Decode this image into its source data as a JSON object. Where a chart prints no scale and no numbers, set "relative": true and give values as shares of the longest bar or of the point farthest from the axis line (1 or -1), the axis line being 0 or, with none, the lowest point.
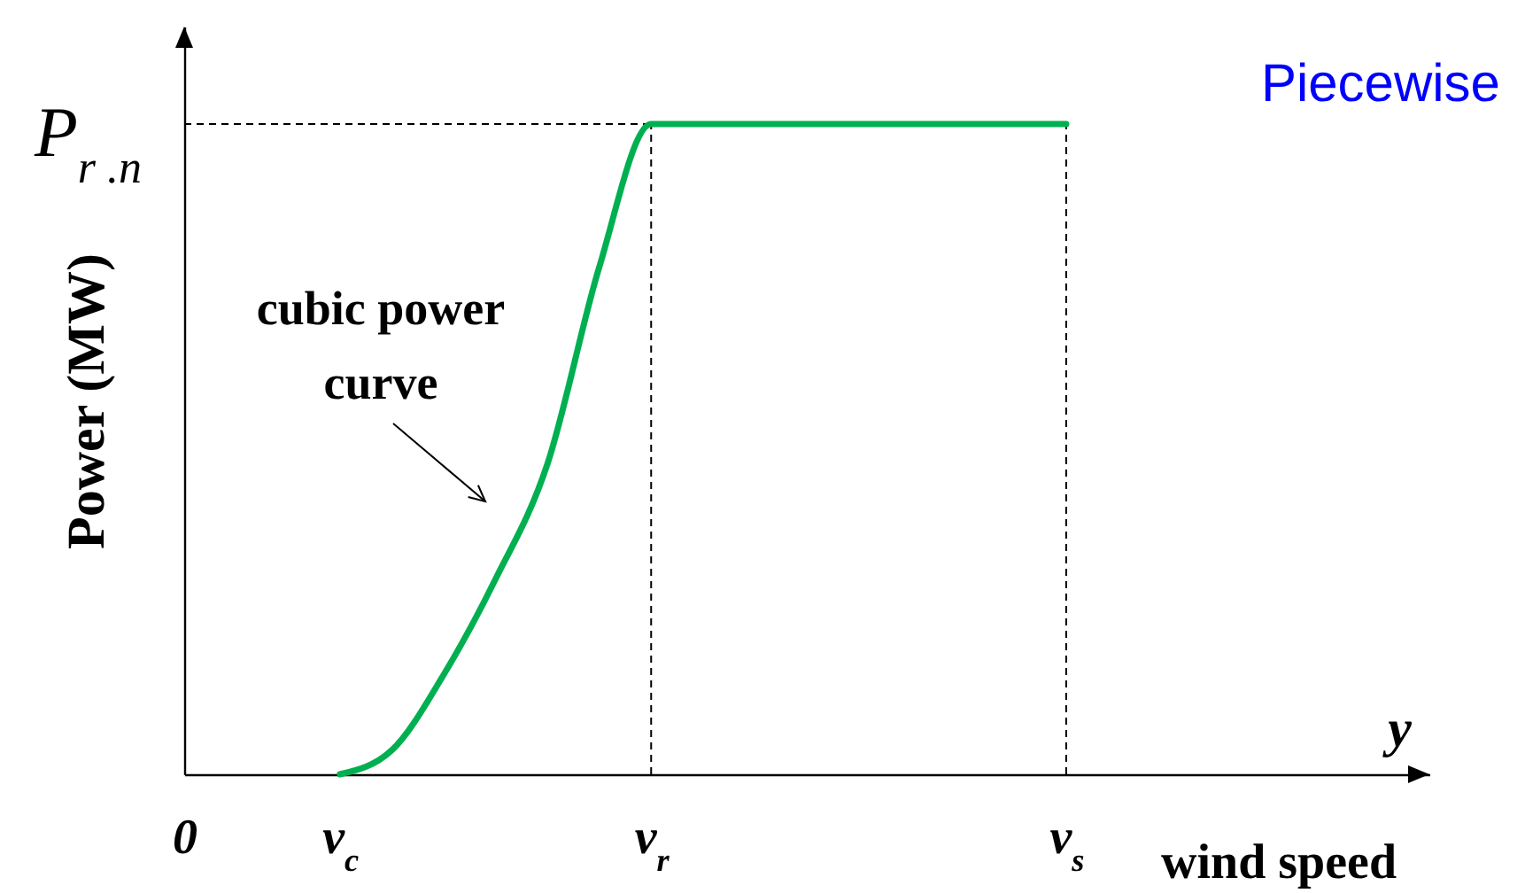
{
  "chart_data": {
    "type": "line",
    "title": "Piecewise",
    "xlabel": "wind speed",
    "ylabel": "Power (MW)",
    "relative": true,
    "categories": [
      "0",
      null,
      null,
      "v$_{c}$",
      null,
      null,
      null,
      null,
      null,
      "v$_{r}$",
      null,
      null,
      null,
      null,
      null,
      null,
      null,
      "v$_{s}$",
      null,
      null,
      null,
      null,
      null,
      null,
      null
    ],
    "series": [
      {
        "color": "#00b050",
        "values": [
          null,
          null,
          null,
          0,
          0.037,
          0.153,
          0.3,
          0.477,
          0.78,
          1,
          1,
          1,
          1,
          1,
          1,
          1,
          1,
          1,
          null,
          null,
          null,
          null,
          null,
          null,
          null
        ]
      }
    ],
    "ref_lines": [
      {
        "axis": "y",
        "value": 1,
        "label": "P$_{r .n}$",
        "line_style": "dashed",
        "color": "#000000"
      },
      {
        "axis": "x",
        "value": "v$_{r}$",
        "line_style": "dashed",
        "color": "#000000"
      },
      {
        "axis": "x",
        "value": "v$_{s}$",
        "line_style": "dashed",
        "color": "#000000"
      }
    ],
    "annotations": [
      "cubic power\ncurve",
      "y"
    ]
  }
}
